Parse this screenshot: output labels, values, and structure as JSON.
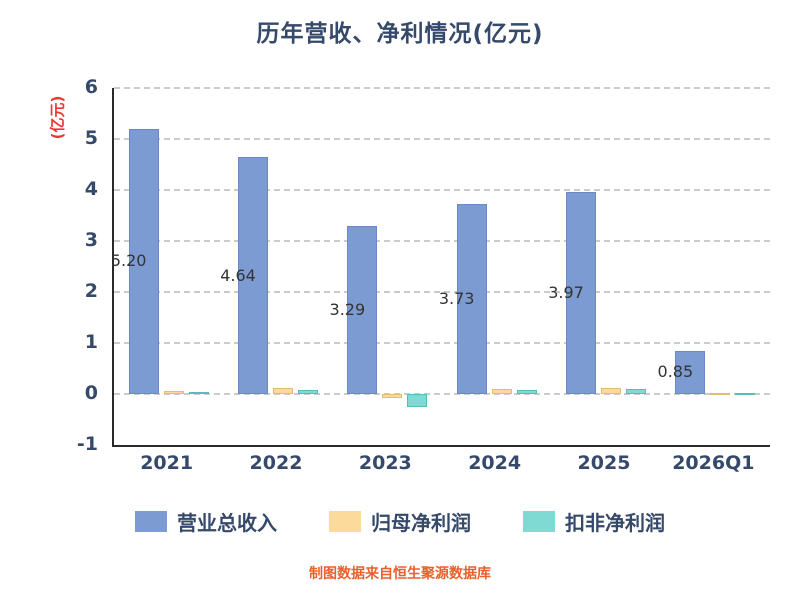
{
  "footer": "制图数据来自恒生聚源数据库",
  "colors": {
    "title_text": "#35496B",
    "axis_text": "#35496B",
    "ylabel_text": "#E8392E",
    "footer_text": "#E8612C",
    "bar_label_text": "#333333",
    "grid": "#cbcbcb",
    "axis_line": "#2a2a2a"
  },
  "chart_data": {
    "type": "bar",
    "title": "历年营收、净利情况(亿元)",
    "ylabel": "(亿元)",
    "xlabel": "",
    "categories": [
      "2021",
      "2022",
      "2023",
      "2024",
      "2025",
      "2026Q1"
    ],
    "series": [
      {
        "name": "营业总收入",
        "color": "#7D9BD3",
        "edge": "#6B8AC4",
        "values": [
          5.2,
          4.64,
          3.29,
          3.73,
          3.97,
          0.85
        ],
        "labels": [
          "5.20",
          "4.64",
          "3.29",
          "3.73",
          "3.97",
          "0.85"
        ]
      },
      {
        "name": "归母净利润",
        "color": "#FBDA9C",
        "edge": "#E3BC6F",
        "values": [
          0.05,
          0.12,
          -0.08,
          0.1,
          0.12,
          0.02
        ]
      },
      {
        "name": "扣非净利润",
        "color": "#7EDAD3",
        "edge": "#55BEB6",
        "values": [
          0.03,
          0.08,
          -0.25,
          0.07,
          0.1,
          0.01
        ]
      }
    ],
    "ylim": [
      -1,
      6
    ],
    "yticks": [
      6,
      5,
      4,
      3,
      2,
      1,
      0,
      -1
    ],
    "grid": "horizontal dashed",
    "legend_position": "bottom"
  }
}
